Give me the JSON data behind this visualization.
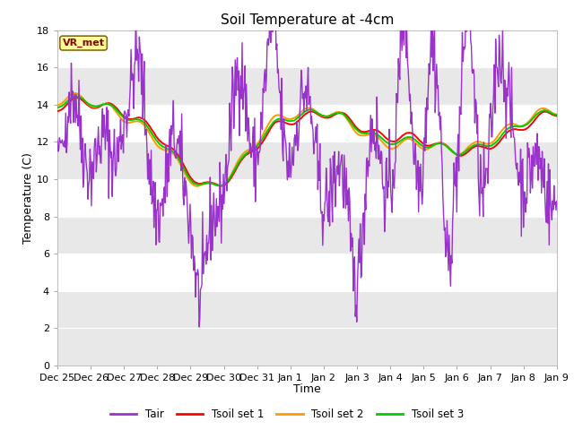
{
  "title": "Soil Temperature at -4cm",
  "xlabel": "Time",
  "ylabel": "Temperature (C)",
  "ylim": [
    0,
    18
  ],
  "yticks": [
    0,
    2,
    4,
    6,
    8,
    10,
    12,
    14,
    16,
    18
  ],
  "x_labels": [
    "Dec 25",
    "Dec 26",
    "Dec 27",
    "Dec 28",
    "Dec 29",
    "Dec 30",
    "Dec 31",
    "Jan 1",
    "Jan 2",
    "Jan 3",
    "Jan 4",
    "Jan 5",
    "Jan 6",
    "Jan 7",
    "Jan 8",
    "Jan 9"
  ],
  "annotation_text": "VR_met",
  "annotation_color": "#8B0000",
  "annotation_bg": "#FFFF99",
  "annotation_edge": "#8B6914",
  "line_colors": {
    "Tair": "#9933CC",
    "Tsoil1": "#FF0000",
    "Tsoil2": "#FF9900",
    "Tsoil3": "#00CC00"
  },
  "legend_labels": [
    "Tair",
    "Tsoil set 1",
    "Tsoil set 2",
    "Tsoil set 3"
  ],
  "fig_bg_color": "#FFFFFF",
  "plot_bg_color": "#FFFFFF",
  "grey_stripe_color": "#E8E8E8",
  "title_fontsize": 11,
  "axis_fontsize": 9,
  "tick_fontsize": 8,
  "n_days": 15,
  "pts_per_day": 48
}
